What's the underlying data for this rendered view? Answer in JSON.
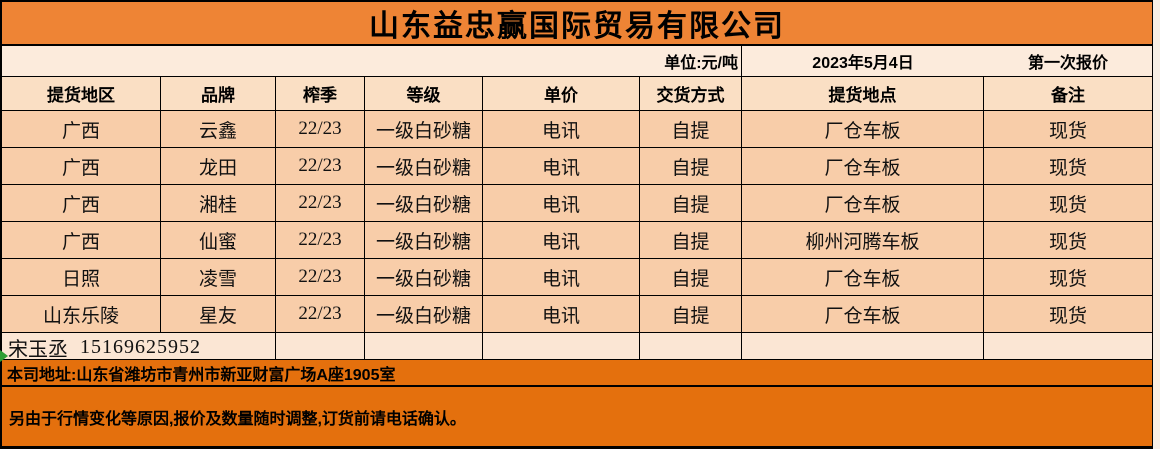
{
  "sheet": {
    "title": "山东益忠赢国际贸易有限公司",
    "unit_label": "单位:元/吨",
    "date": "2023年5月4日",
    "quote_round": "第一次报价"
  },
  "table": {
    "columns": [
      "提货地区",
      "品牌",
      "榨季",
      "等级",
      "单价",
      "交货方式",
      "提货地点",
      "备注"
    ],
    "rows": [
      [
        "广西",
        "云鑫",
        "22/23",
        "一级白砂糖",
        "电讯",
        "自提",
        "厂仓车板",
        "现货"
      ],
      [
        "广西",
        "龙田",
        "22/23",
        "一级白砂糖",
        "电讯",
        "自提",
        "厂仓车板",
        "现货"
      ],
      [
        "广西",
        "湘桂",
        "22/23",
        "一级白砂糖",
        "电讯",
        "自提",
        "厂仓车板",
        "现货"
      ],
      [
        "广西",
        "仙蜜",
        "22/23",
        "一级白砂糖",
        "电讯",
        "自提",
        "柳州河腾车板",
        "现货"
      ],
      [
        "日照",
        "凌雪",
        "22/23",
        "一级白砂糖",
        "电讯",
        "自提",
        "厂仓车板",
        "现货"
      ],
      [
        "山东乐陵",
        "星友",
        "22/23",
        "一级白砂糖",
        "电讯",
        "自提",
        "厂仓车板",
        "现货"
      ]
    ]
  },
  "contact": {
    "name": "宋玉丞",
    "phone": "15169625952"
  },
  "footer": {
    "address": "本司地址:山东省潍坊市青州市新亚财富广场A座1905室",
    "notice": "另由于行情变化等原因,报价及数量随时调整,订货前请电话确认。"
  },
  "colors": {
    "title_bar": "#ee8435",
    "footer_bar": "#e4700d",
    "header_bg": "#fadfc4",
    "data_bg": "#f8cda9",
    "marker_green": "#2f9e33"
  }
}
